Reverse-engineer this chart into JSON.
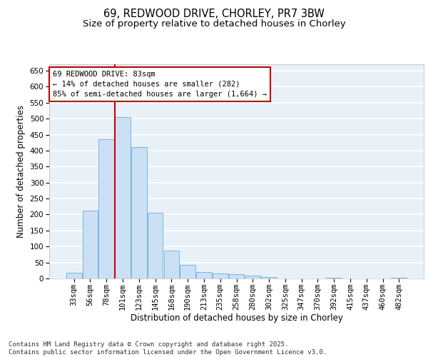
{
  "title_line1": "69, REDWOOD DRIVE, CHORLEY, PR7 3BW",
  "title_line2": "Size of property relative to detached houses in Chorley",
  "xlabel": "Distribution of detached houses by size in Chorley",
  "ylabel": "Number of detached properties",
  "categories": [
    "33sqm",
    "56sqm",
    "78sqm",
    "101sqm",
    "123sqm",
    "145sqm",
    "168sqm",
    "190sqm",
    "213sqm",
    "235sqm",
    "258sqm",
    "280sqm",
    "302sqm",
    "325sqm",
    "347sqm",
    "370sqm",
    "392sqm",
    "415sqm",
    "437sqm",
    "460sqm",
    "482sqm"
  ],
  "values": [
    18,
    213,
    435,
    505,
    410,
    205,
    86,
    42,
    20,
    16,
    13,
    10,
    4,
    0,
    0,
    0,
    3,
    0,
    0,
    0,
    2
  ],
  "bar_color": "#cce0f5",
  "bar_edge_color": "#6aaed6",
  "background_color": "#e8f0f8",
  "grid_color": "#ffffff",
  "red_line_x": 2.5,
  "annotation_text": "69 REDWOOD DRIVE: 83sqm\n← 14% of detached houses are smaller (282)\n85% of semi-detached houses are larger (1,664) →",
  "annotation_box_color": "#ffffff",
  "annotation_box_edge": "#cc0000",
  "ylim": [
    0,
    670
  ],
  "yticks": [
    0,
    50,
    100,
    150,
    200,
    250,
    300,
    350,
    400,
    450,
    500,
    550,
    600,
    650
  ],
  "footer": "Contains HM Land Registry data © Crown copyright and database right 2025.\nContains public sector information licensed under the Open Government Licence v3.0.",
  "title_fontsize": 10.5,
  "subtitle_fontsize": 9.5,
  "axis_label_fontsize": 8.5,
  "tick_fontsize": 7.5,
  "annotation_fontsize": 7.5,
  "footer_fontsize": 6.5
}
